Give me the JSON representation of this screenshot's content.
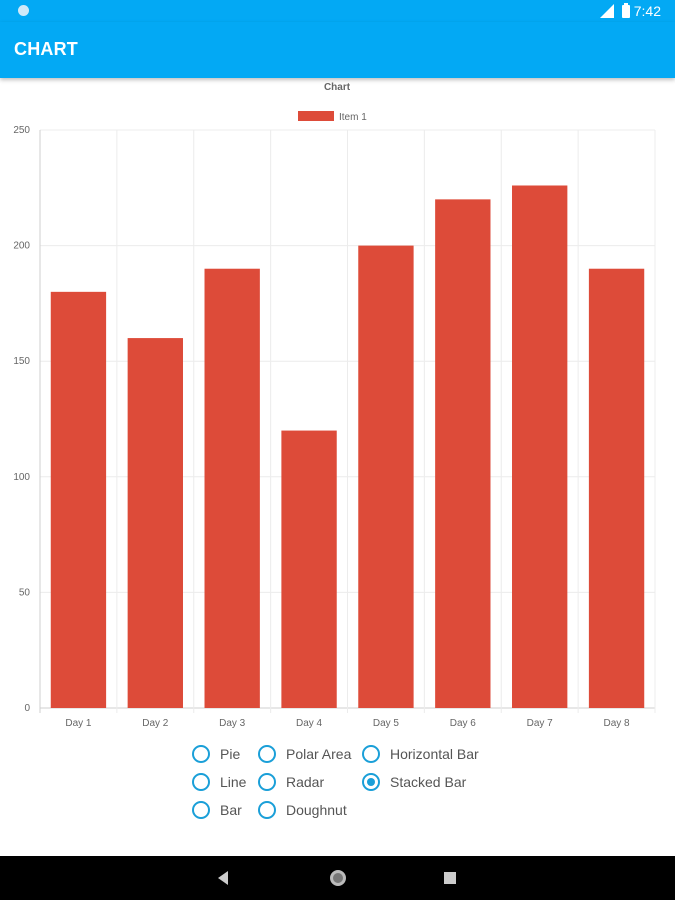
{
  "status_bar": {
    "time": "7:42"
  },
  "app_bar": {
    "title": "CHART"
  },
  "chart_data": {
    "type": "bar",
    "title": "Chart",
    "categories": [
      "Day 1",
      "Day 2",
      "Day 3",
      "Day 4",
      "Day 5",
      "Day 6",
      "Day 7",
      "Day 8"
    ],
    "series": [
      {
        "name": "Item 1",
        "values": [
          180,
          160,
          190,
          120,
          200,
          220,
          226,
          190
        ],
        "color": "#dd4b39"
      }
    ],
    "ylim": [
      0,
      250
    ],
    "yticks": [
      0,
      50,
      100,
      150,
      200,
      250
    ],
    "grid": true,
    "legend": "top-center"
  },
  "chart_options": {
    "items": [
      {
        "label": "Pie",
        "checked": false
      },
      {
        "label": "Polar Area",
        "checked": false
      },
      {
        "label": "Horizontal Bar",
        "checked": false
      },
      {
        "label": "Line",
        "checked": false
      },
      {
        "label": "Radar",
        "checked": false
      },
      {
        "label": "Stacked Bar",
        "checked": true
      },
      {
        "label": "Bar",
        "checked": false
      },
      {
        "label": "Doughnut",
        "checked": false
      }
    ]
  },
  "colors": {
    "accent": "#03a9f4",
    "bar": "#dd4b39",
    "radio": "#1a9fd8"
  }
}
